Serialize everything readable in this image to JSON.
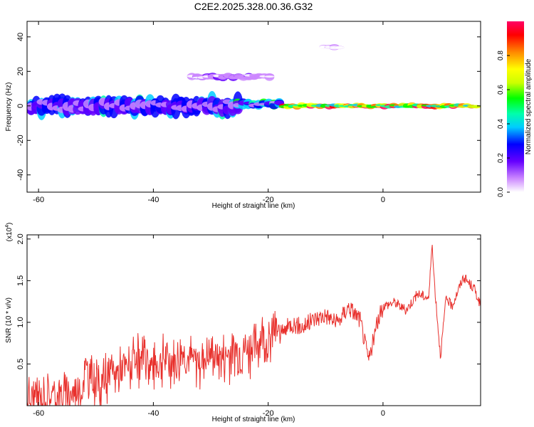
{
  "title": "C2E2.2025.328.00.36.G32",
  "colors": {
    "snr_line": "#e8302c",
    "frame": "#000000",
    "background": "#ffffff"
  },
  "chart_data": [
    {
      "type": "heatmap",
      "name": "spectrogram",
      "xlabel": "Height of straight line (km)",
      "ylabel": "Frequency (Hz)",
      "xlim": [
        -62,
        17
      ],
      "ylim": [
        -50,
        49
      ],
      "xticks": [
        -60,
        -40,
        -20,
        0
      ],
      "xtick_labels": [
        "-60",
        "-40",
        "-20",
        "0"
      ],
      "yticks": [
        -40,
        -20,
        0,
        20,
        40
      ],
      "ytick_labels": [
        "-40",
        "-20",
        "0",
        "20",
        "40"
      ],
      "colorbar": {
        "label": "Normalized spectral amplitude",
        "range": [
          0,
          1
        ],
        "ticks": [
          0.0,
          0.2,
          0.4,
          0.6,
          0.8
        ],
        "tick_labels": [
          "0.0",
          "0.2",
          "0.4",
          "0.6",
          "0.8"
        ],
        "colors": [
          "#ffffff",
          "#cc88ff",
          "#6600ff",
          "#0000ff",
          "#00ccff",
          "#00ffaa",
          "#00ff00",
          "#ccff00",
          "#ffff00",
          "#ff8800",
          "#ff0000",
          "#ff0066"
        ]
      },
      "band_description": "broad noisy band near 0 Hz for -62..-26 km, narrow high-amplitude line near 0 Hz from -20 to 16 km",
      "features": [
        {
          "x_range": [
            -62,
            -26
          ],
          "freq_center": 0,
          "freq_halfwidth": 6,
          "amplitude": 0.35
        },
        {
          "x_range": [
            -26,
            -18
          ],
          "freq_center": 1,
          "freq_halfwidth": 3,
          "amplitude": 0.45
        },
        {
          "x_range": [
            -18,
            16
          ],
          "freq_center": 0,
          "freq_halfwidth": 1.5,
          "amplitude": 0.95
        },
        {
          "x_range": [
            -34,
            -20
          ],
          "freq_center": 17,
          "freq_halfwidth": 2,
          "amplitude": 0.15
        },
        {
          "x_range": [
            -11,
            -8
          ],
          "freq_center": 34,
          "freq_halfwidth": 1.5,
          "amplitude": 0.08
        }
      ]
    },
    {
      "type": "line",
      "name": "snr",
      "xlabel": "Height of straight line (km)",
      "ylabel": "SNR (10 * v/v)",
      "y_multiplier": "(x10⁴)",
      "y_multiplier_base": "(x10",
      "y_multiplier_exp": "4",
      "xlim": [
        -62,
        17
      ],
      "ylim": [
        0,
        2.05
      ],
      "xticks": [
        -60,
        -40,
        -20,
        0
      ],
      "xtick_labels": [
        "-60",
        "-40",
        "-20",
        "0"
      ],
      "yticks": [
        0.5,
        1.0,
        1.5,
        2.0
      ],
      "ytick_labels": [
        "0.5",
        "1.0",
        "1.5",
        "2.0"
      ],
      "series": [
        {
          "name": "SNR",
          "x": [
            -62,
            -60,
            -58,
            -56,
            -54,
            -52.5,
            -52,
            -50,
            -48,
            -46,
            -44,
            -42,
            -40,
            -38,
            -36,
            -35,
            -34,
            -32,
            -30,
            -28,
            -26,
            -24,
            -22,
            -21,
            -20,
            -19,
            -18,
            -16,
            -14,
            -12,
            -10,
            -8,
            -6,
            -4,
            -2.5,
            -1,
            0,
            2,
            4,
            6,
            8,
            8.5,
            9,
            10,
            11,
            12,
            14,
            16,
            17
          ],
          "values": [
            0.1,
            0.12,
            0.14,
            0.16,
            0.18,
            0.2,
            0.45,
            0.3,
            0.35,
            0.45,
            0.5,
            0.55,
            0.5,
            0.6,
            0.55,
            0.7,
            0.6,
            0.55,
            0.65,
            0.6,
            0.7,
            0.7,
            0.75,
            0.9,
            0.7,
            0.95,
            0.85,
            1.0,
            0.95,
            1.05,
            1.1,
            1.0,
            1.2,
            1.05,
            0.55,
            1.0,
            1.2,
            1.25,
            1.15,
            1.35,
            1.3,
            1.95,
            1.45,
            0.6,
            1.3,
            1.2,
            1.55,
            1.4,
            1.2
          ]
        }
      ]
    }
  ]
}
